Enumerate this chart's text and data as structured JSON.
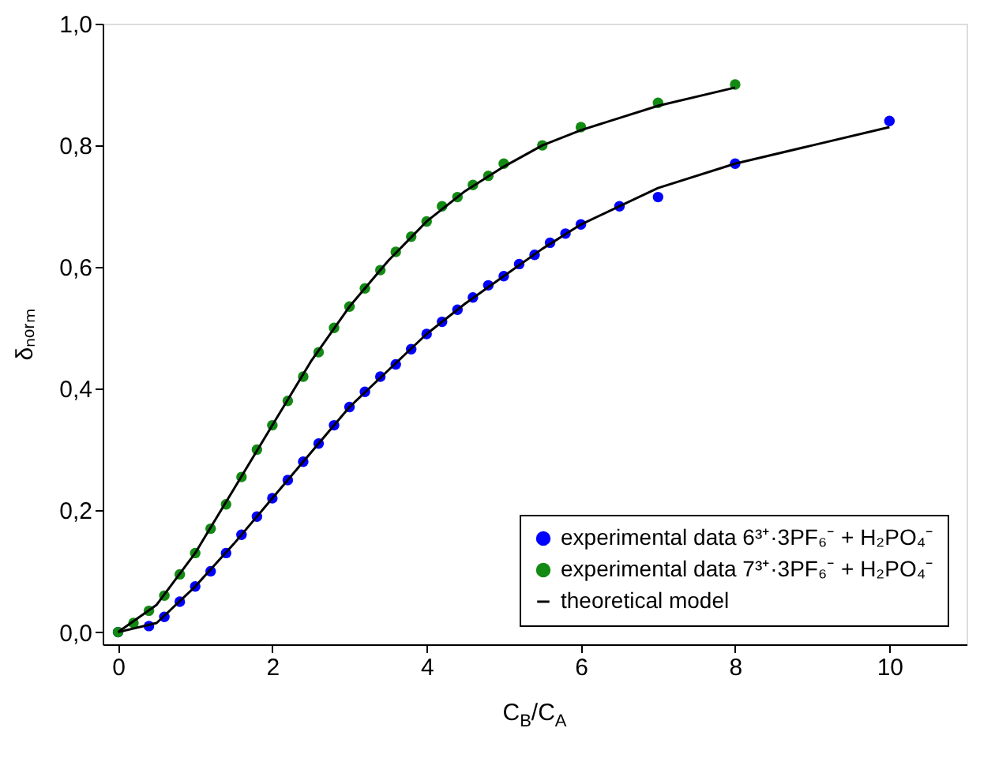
{
  "chart_data": {
    "type": "scatter",
    "xlabel": "C$_{B}$/C$_{A}$",
    "ylabel": "δₙₒᵣₘ",
    "xlim": [
      -0.2,
      11
    ],
    "ylim": [
      -0.02,
      1.0
    ],
    "xticks": [
      0,
      2,
      4,
      6,
      8,
      10
    ],
    "yticks": [
      {
        "value": 0,
        "label": "0,0"
      },
      {
        "value": 0.2,
        "label": "0,2"
      },
      {
        "value": 0.4,
        "label": "0,4"
      },
      {
        "value": 0.6,
        "label": "0,6"
      },
      {
        "value": 0.8,
        "label": "0,8"
      },
      {
        "value": 1.0,
        "label": "1,0"
      }
    ],
    "grid": false,
    "legend": "bottom right",
    "series": [
      {
        "name": "experimental data 6³⁺·3PF₆⁻ + H₂PO₄⁻",
        "color": "#0000ff",
        "marker": "circle",
        "x": [
          0,
          0.2,
          0.4,
          0.6,
          0.8,
          1.0,
          1.2,
          1.4,
          1.6,
          1.8,
          2.0,
          2.2,
          2.4,
          2.6,
          2.8,
          3.0,
          3.2,
          3.4,
          3.6,
          3.8,
          4.0,
          4.2,
          4.4,
          4.6,
          4.8,
          5.0,
          5.2,
          5.4,
          5.6,
          5.8,
          6.0,
          6.5,
          7,
          8,
          10
        ],
        "values": [
          0,
          null,
          0.01,
          0.025,
          0.05,
          0.075,
          0.1,
          0.13,
          0.16,
          0.19,
          0.22,
          0.25,
          0.28,
          0.31,
          0.34,
          0.37,
          0.395,
          0.42,
          0.44,
          0.465,
          0.49,
          0.51,
          0.53,
          0.55,
          0.57,
          0.585,
          0.605,
          0.62,
          0.64,
          0.655,
          0.67,
          0.7,
          0.715,
          0.77,
          0.84
        ]
      },
      {
        "name": "experimental data 7³⁺·3PF₆⁻ + H₂PO₄⁻",
        "color": "#138a13",
        "marker": "circle",
        "x": [
          0,
          0.2,
          0.4,
          0.6,
          0.8,
          1.0,
          1.2,
          1.4,
          1.6,
          1.8,
          2.0,
          2.2,
          2.4,
          2.6,
          2.8,
          3.0,
          3.2,
          3.4,
          3.6,
          3.8,
          4.0,
          4.2,
          4.4,
          4.6,
          4.8,
          5.0,
          5.5,
          6,
          7,
          8
        ],
        "values": [
          0,
          0.015,
          0.035,
          0.06,
          0.095,
          0.13,
          0.17,
          0.21,
          0.255,
          0.3,
          0.34,
          0.38,
          0.42,
          0.46,
          0.5,
          0.535,
          0.565,
          0.595,
          0.625,
          0.65,
          0.675,
          0.7,
          0.715,
          0.735,
          0.75,
          0.77,
          0.8,
          0.83,
          0.87,
          0.9
        ]
      },
      {
        "name": "theoretical model",
        "color": "#000000",
        "type": "line",
        "line_style": "solid",
        "x": [
          0,
          0.5,
          1,
          1.5,
          2,
          2.5,
          3,
          3.5,
          4,
          4.5,
          5,
          5.5,
          6,
          7,
          8
        ],
        "values": [
          0,
          0.045,
          0.13,
          0.235,
          0.34,
          0.445,
          0.535,
          0.61,
          0.675,
          0.725,
          0.765,
          0.8,
          0.825,
          0.865,
          0.895
        ]
      },
      {
        "color": "#000000",
        "type": "line",
        "line_style": "solid",
        "x": [
          0,
          0.5,
          1,
          1.5,
          2,
          2.5,
          3,
          3.5,
          4,
          4.5,
          5,
          5.5,
          6,
          7,
          8,
          9,
          10
        ],
        "values": [
          0,
          0.015,
          0.075,
          0.145,
          0.22,
          0.295,
          0.37,
          0.43,
          0.49,
          0.54,
          0.585,
          0.63,
          0.67,
          0.73,
          0.77,
          0.8,
          0.83
        ]
      }
    ]
  }
}
